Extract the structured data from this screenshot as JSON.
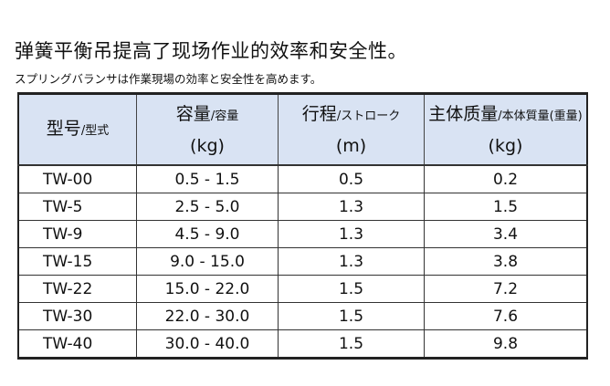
{
  "title": "弹簧平衡吊提高了现场作业的效率和安全性。",
  "subtitle": "スプリングバランサは作業現場の効率と安全性を高めます。",
  "headers": [
    {
      "main": "型号",
      "sub": "/型式",
      "unit": ""
    },
    {
      "main": "容量",
      "sub": "/容量",
      "unit": "(kg)"
    },
    {
      "main": "行程",
      "sub": "/ストローク",
      "unit": "(m)"
    },
    {
      "main": "主体质量",
      "sub": "/本体質量(重量)",
      "unit": "(kg)"
    }
  ],
  "rows": [
    [
      "TW-00",
      "0.5 - 1.5",
      "0.5",
      "0.2"
    ],
    [
      "TW-5",
      "2.5 - 5.0",
      "1.3",
      "1.5"
    ],
    [
      "TW-9",
      "4.5 - 9.0",
      "1.3",
      "3.4"
    ],
    [
      "TW-15",
      "9.0 - 15.0",
      "1.3",
      "3.8"
    ],
    [
      "TW-22",
      "15.0 - 22.0",
      "1.5",
      "7.2"
    ],
    [
      "TW-30",
      "22.0 - 30.0",
      "1.5",
      "7.6"
    ],
    [
      "TW-40",
      "30.0 - 40.0",
      "1.5",
      "9.8"
    ]
  ]
}
